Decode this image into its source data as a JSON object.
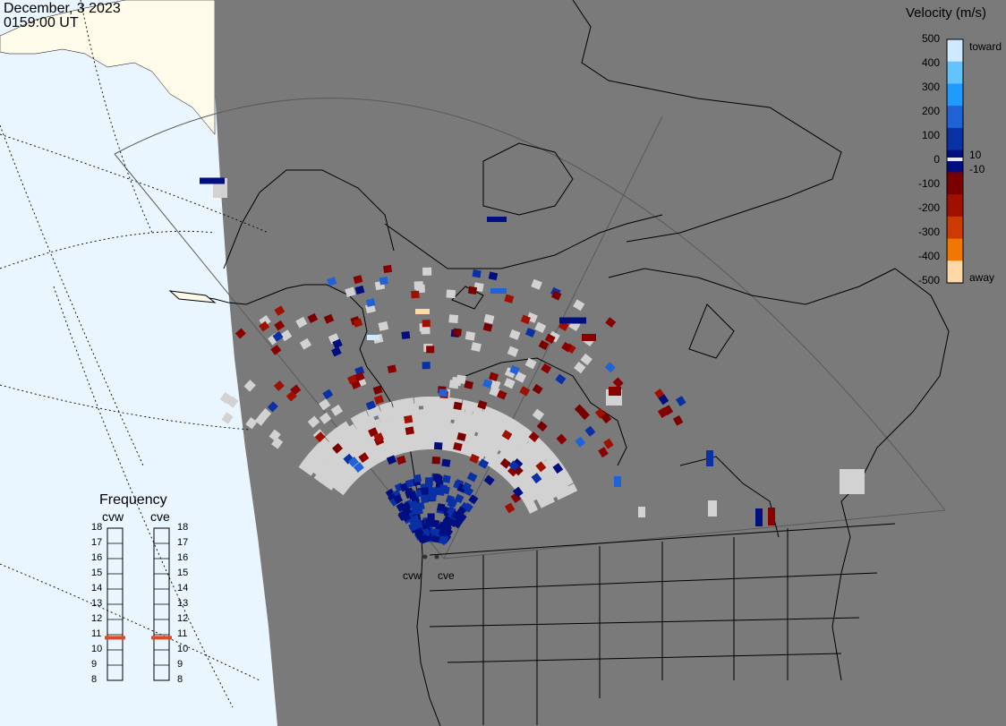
{
  "header": {
    "date": "December, 3 2023",
    "time": "0159:00 UT"
  },
  "colorbar": {
    "title": "Velocity (m/s)",
    "ticks_left": [
      "500",
      "400",
      "300",
      "200",
      "100",
      "0",
      "-100",
      "-200",
      "-300",
      "-400",
      "-500"
    ],
    "tick_right_pos": "10",
    "tick_right_neg": "-10",
    "label_toward": "toward",
    "label_away": "away",
    "colors": [
      "#cfe9ff",
      "#62c3ff",
      "#1f9bff",
      "#1f63d6",
      "#0a30a5",
      "#000e80",
      "#7a0000",
      "#a01000",
      "#cc3a00",
      "#f07700",
      "#ffd8a8"
    ]
  },
  "frequency": {
    "title": "Frequency",
    "radars": [
      "cvw",
      "cve"
    ],
    "scale": [
      "18",
      "17",
      "16",
      "15",
      "14",
      "13",
      "12",
      "11",
      "10",
      "9",
      "8"
    ],
    "current_mhz": 10.8,
    "marker_color": "#e8451e"
  },
  "map": {
    "radar_labels": [
      "cvw",
      "cve"
    ],
    "colors": {
      "ocean_day": "#eaf6ff",
      "land_day": "#fffbea",
      "night": "#7a7a7a",
      "ground_scatter": "#d2d2d2",
      "border": "#000000"
    }
  }
}
